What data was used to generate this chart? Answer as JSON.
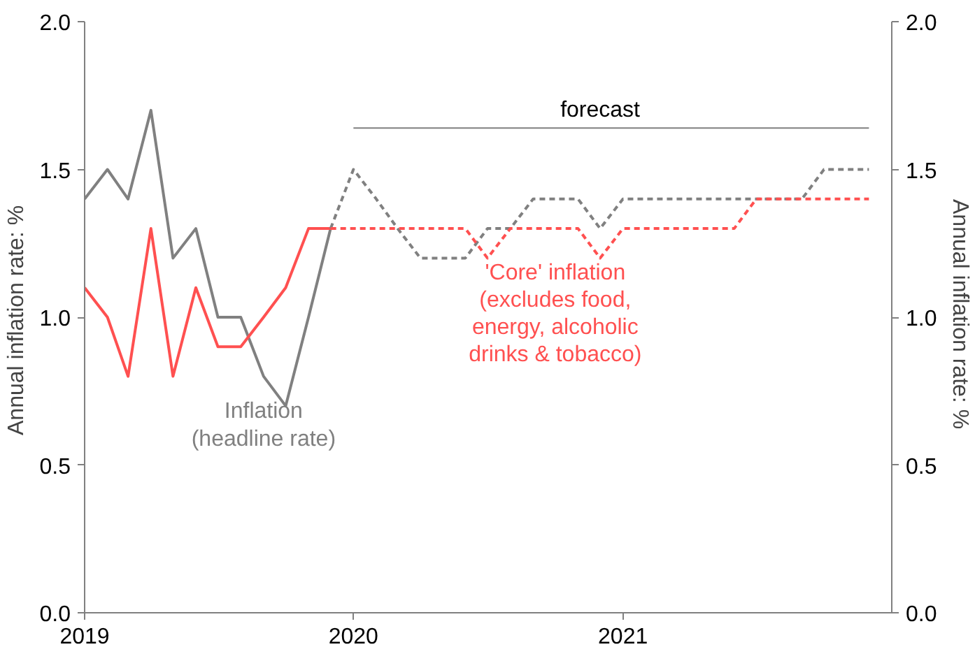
{
  "chart_data": {
    "type": "line",
    "xlim": [
      "2019-01",
      "2022-01"
    ],
    "xticks": [
      {
        "value": "2019",
        "label": "2019"
      },
      {
        "value": "2020",
        "label": "2020"
      },
      {
        "value": "2021",
        "label": "2021"
      }
    ],
    "ylim": [
      0,
      2
    ],
    "yticks": [
      {
        "value": 0,
        "label": "0.0"
      },
      {
        "value": 0.5,
        "label": "0.5"
      },
      {
        "value": 1,
        "label": "1.0"
      },
      {
        "value": 1.5,
        "label": "1.5"
      },
      {
        "value": 2,
        "label": "2.0"
      }
    ],
    "y2lim": [
      0,
      2
    ],
    "y2ticks": [
      {
        "value": 0,
        "label": "0.0"
      },
      {
        "value": 0.5,
        "label": "0.5"
      },
      {
        "value": 1,
        "label": "1.0"
      },
      {
        "value": 1.5,
        "label": "1.5"
      },
      {
        "value": 2,
        "label": "2.0"
      }
    ],
    "ylabel": "Annual inflation rate:  %",
    "y2label": "Annual inflation rate:  %",
    "grid": false,
    "marker": "none",
    "annotations": [
      {
        "text": "forecast",
        "x": "2020-12",
        "y": 1.66
      }
    ],
    "series": [
      {
        "color": "#808080",
        "line_style": "solid",
        "x": [
          "2020-01",
          "2021-12"
        ],
        "values": [
          1.64,
          1.64
        ]
      },
      {
        "name": "Inflation\n(headline rate)",
        "color": "#808080",
        "line_style": "solid",
        "x": [
          "2019-01",
          "2019-02",
          "2019-03",
          "2019-04",
          "2019-05",
          "2019-06",
          "2019-07",
          "2019-08",
          "2019-09",
          "2019-10",
          "2019-11",
          "2019-12"
        ],
        "values": [
          1.4,
          1.5,
          1.4,
          1.7,
          1.2,
          1.3,
          1.0,
          1.0,
          0.8,
          0.7,
          1.0,
          1.3
        ]
      },
      {
        "name": "'Core' inflation\n(excludes food,\nenergy, alcoholic\ndrinks & tobacco)",
        "color": "#ff5050",
        "line_style": "solid",
        "x": [
          "2019-01",
          "2019-02",
          "2019-03",
          "2019-04",
          "2019-05",
          "2019-06",
          "2019-07",
          "2019-08",
          "2019-09",
          "2019-10",
          "2019-11",
          "2019-12"
        ],
        "values": [
          1.1,
          1.0,
          0.8,
          1.3,
          0.8,
          1.1,
          0.9,
          0.9,
          1.0,
          1.1,
          1.3,
          1.3
        ]
      },
      {
        "color": "#808080",
        "line_style": "dashed",
        "x": [
          "2019-12",
          "2020-01",
          "2020-02",
          "2020-03",
          "2020-04",
          "2020-05",
          "2020-06",
          "2020-07",
          "2020-08",
          "2020-09",
          "2020-10",
          "2020-11",
          "2020-12",
          "2021-01",
          "2021-02",
          "2021-03",
          "2021-04",
          "2021-05",
          "2021-06",
          "2021-07",
          "2021-08",
          "2021-09",
          "2021-10",
          "2021-11",
          "2021-12"
        ],
        "values": [
          1.3,
          1.5,
          1.4,
          1.3,
          1.2,
          1.2,
          1.2,
          1.3,
          1.3,
          1.4,
          1.4,
          1.4,
          1.3,
          1.4,
          1.4,
          1.4,
          1.4,
          1.4,
          1.4,
          1.4,
          1.4,
          1.4,
          1.5,
          1.5,
          1.5
        ]
      },
      {
        "color": "#ff5050",
        "line_style": "dashed",
        "x": [
          "2019-12",
          "2020-01",
          "2020-02",
          "2020-03",
          "2020-04",
          "2020-05",
          "2020-06",
          "2020-07",
          "2020-08",
          "2020-09",
          "2020-10",
          "2020-11",
          "2020-12",
          "2021-01",
          "2021-02",
          "2021-03",
          "2021-04",
          "2021-05",
          "2021-06",
          "2021-07",
          "2021-08",
          "2021-09",
          "2021-10",
          "2021-11",
          "2021-12"
        ],
        "values": [
          1.3,
          1.3,
          1.3,
          1.3,
          1.3,
          1.3,
          1.3,
          1.2,
          1.3,
          1.3,
          1.3,
          1.3,
          1.2,
          1.3,
          1.3,
          1.3,
          1.3,
          1.3,
          1.3,
          1.4,
          1.4,
          1.4,
          1.4,
          1.4,
          1.4
        ]
      }
    ]
  }
}
